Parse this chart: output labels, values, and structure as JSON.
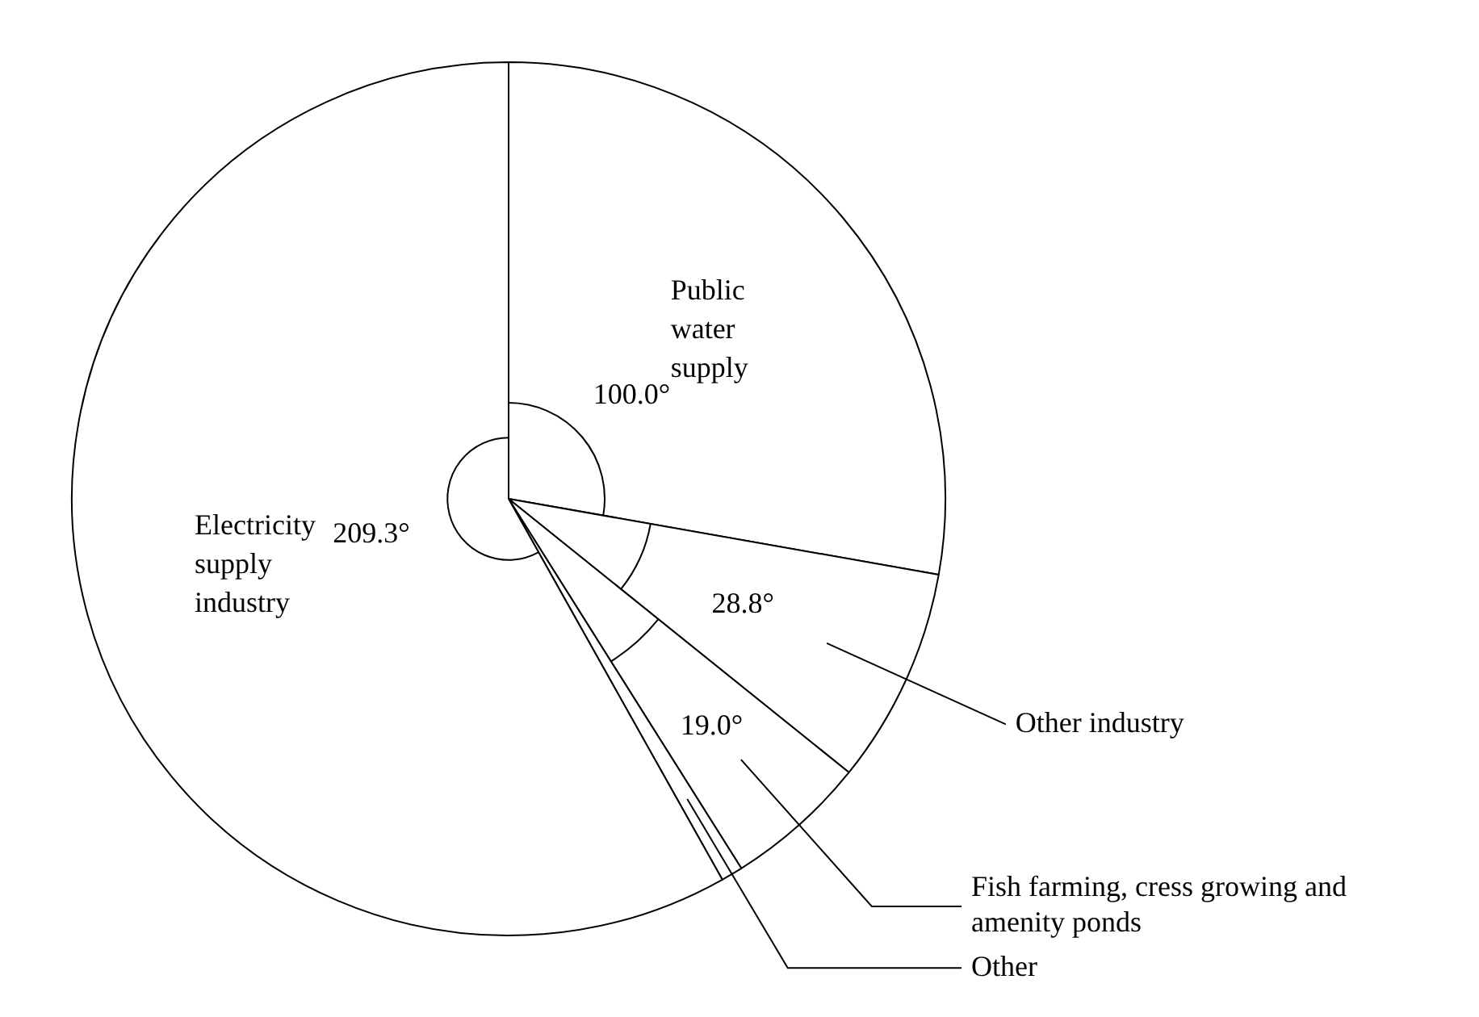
{
  "chart_data": {
    "type": "pie",
    "categories": [
      "Public water supply",
      "Other industry",
      "Fish farming, cress growing and amenity ponds",
      "Other",
      "Electricity supply industry"
    ],
    "values": [
      100.0,
      28.8,
      19.0,
      2.9,
      209.3
    ],
    "colors": [
      "#ffffff",
      "#ffffff",
      "#ffffff",
      "#ffffff",
      "#ffffff"
    ],
    "value_labels": [
      "100.0°",
      "28.8°",
      "19.0°",
      null,
      "209.3°"
    ],
    "legend": false
  }
}
